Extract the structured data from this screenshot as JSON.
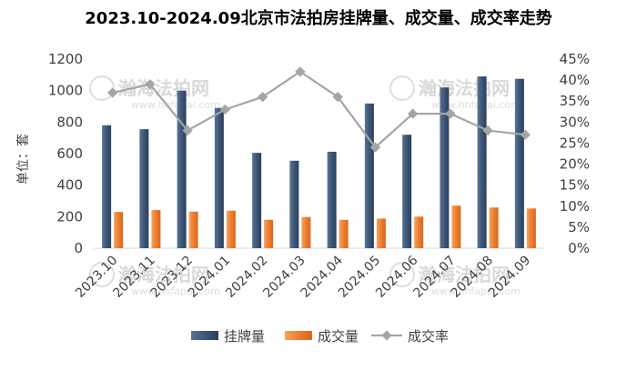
{
  "chart_data": {
    "type": "bar",
    "title": "2023.10-2024.09北京市法拍房挂牌量、成交量、成交率走势",
    "ylabel": "单位：套",
    "categories": [
      "2023.10",
      "2023.11",
      "2023.12",
      "2024.01",
      "2024.02",
      "2024.03",
      "2024.04",
      "2024.05",
      "2024.06",
      "2024.07",
      "2024.08",
      "2024.09"
    ],
    "y_left": {
      "ylim": [
        0,
        1200
      ],
      "ticks": [
        "0",
        "200",
        "400",
        "600",
        "800",
        "1000",
        "1200"
      ]
    },
    "y_right": {
      "ylim": [
        0,
        45
      ],
      "ticks": [
        "0%",
        "5%",
        "10%",
        "15%",
        "20%",
        "25%",
        "30%",
        "35%",
        "40%",
        "45%"
      ]
    },
    "series": [
      {
        "name": "挂牌量",
        "type": "bar",
        "axis": "left",
        "color": "#44546a",
        "values": [
          780,
          755,
          1000,
          890,
          605,
          555,
          612,
          918,
          720,
          1020,
          1090,
          1075
        ]
      },
      {
        "name": "成交量",
        "type": "bar",
        "axis": "left",
        "color": "#ed7d31",
        "values": [
          230,
          242,
          232,
          238,
          180,
          198,
          180,
          188,
          200,
          270,
          258,
          252
        ]
      },
      {
        "name": "成交率",
        "type": "line",
        "axis": "right",
        "color": "#a5a5a5",
        "values": [
          37,
          39,
          28,
          33,
          36,
          42,
          36,
          24,
          32,
          32,
          28,
          27
        ]
      }
    ],
    "grid": false,
    "legend": "bottom"
  },
  "watermark": {
    "text": "瀚海法拍网",
    "url": "www.hhfapai.com"
  }
}
